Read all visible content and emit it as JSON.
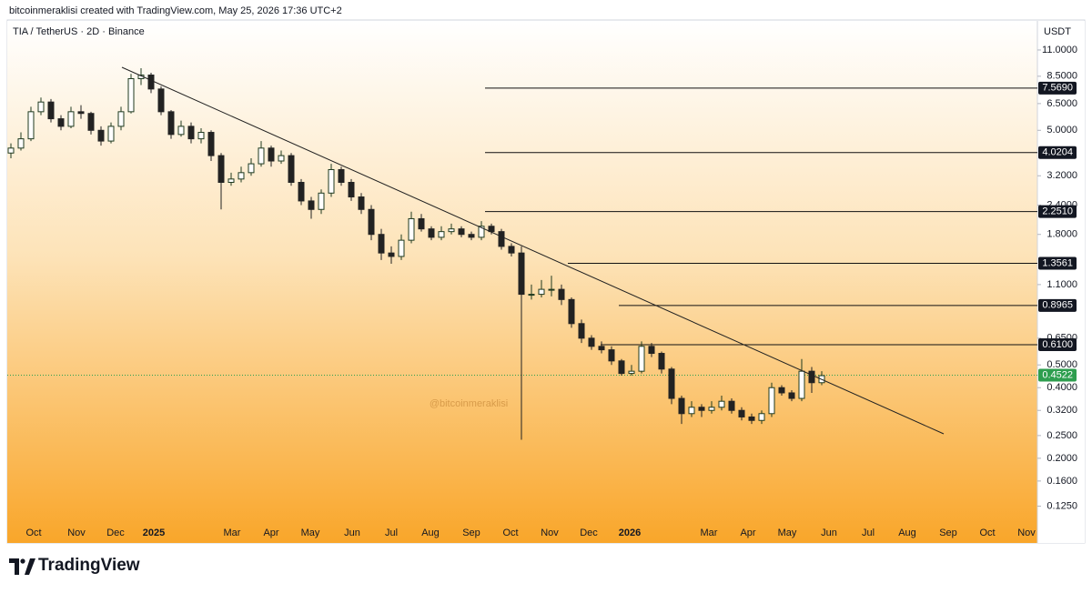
{
  "header": "bitcoinmeraklisi created with TradingView.com, May 25, 2026 17:36 UTC+2",
  "footer_brand": "TradingView",
  "chart_data": {
    "type": "candlestick",
    "symbol": "TIA / TetherUS · 2D · Binance",
    "currency": "USDT",
    "watermark": "@bitcoinmeraklisi",
    "log_scale": true,
    "up_color": "#1f3a1f",
    "down_color": "#222222",
    "ylim": [
      0.106,
      14.5
    ],
    "yticks": [
      {
        "value": 11,
        "label": "11.0000"
      },
      {
        "value": 8.5,
        "label": "8.5000"
      },
      {
        "value": 6.5,
        "label": "6.5000"
      },
      {
        "value": 5,
        "label": "5.0000"
      },
      {
        "value": 3.2,
        "label": "3.2000"
      },
      {
        "value": 2.4,
        "label": "2.4000"
      },
      {
        "value": 1.8,
        "label": "1.8000"
      },
      {
        "value": 1.1,
        "label": "1.1000"
      },
      {
        "value": 0.65,
        "label": "0.6500"
      },
      {
        "value": 0.5,
        "label": "0.5000"
      },
      {
        "value": 0.4,
        "label": "0.4000"
      },
      {
        "value": 0.32,
        "label": "0.3200"
      },
      {
        "value": 0.25,
        "label": "0.2500"
      },
      {
        "value": 0.2,
        "label": "0.2000"
      },
      {
        "value": 0.16,
        "label": "0.1600"
      },
      {
        "value": 0.125,
        "label": "0.1250"
      }
    ],
    "time_labels": [
      "Oct",
      "Nov",
      "Dec",
      "2025",
      "Mar",
      "Apr",
      "May",
      "Jun",
      "Jul",
      "Aug",
      "Sep",
      "Oct",
      "Nov",
      "Dec",
      "2026",
      "Mar",
      "Apr",
      "May",
      "Jun",
      "Jul",
      "Aug",
      "Sep",
      "Oct",
      "Nov"
    ],
    "levels": [
      {
        "value": 7.569,
        "label": "7.5690"
      },
      {
        "value": 4.0204,
        "label": "4.0204"
      },
      {
        "value": 2.251,
        "label": "2.2510"
      },
      {
        "value": 1.3561,
        "label": "1.3561"
      },
      {
        "value": 0.8965,
        "label": "0.8965"
      },
      {
        "value": 0.61,
        "label": "0.6100"
      }
    ],
    "last_price": {
      "value": 0.4522,
      "label": "0.4522",
      "color": "#2e9e4f"
    },
    "open": [
      4.0,
      4.2,
      4.6,
      6.0,
      6.6,
      5.6,
      5.2,
      6.0,
      5.9,
      5.0,
      4.5,
      5.2,
      6.0,
      8.3,
      8.6,
      7.5,
      6.0,
      4.8,
      5.2,
      4.6,
      4.9,
      3.9,
      3.0,
      3.1,
      3.3,
      3.6,
      4.2,
      3.7,
      3.9,
      3.0,
      2.5,
      2.3,
      2.7,
      3.4,
      3.0,
      2.6,
      2.3,
      1.8,
      1.5,
      1.45,
      1.7,
      2.1,
      1.9,
      1.75,
      1.85,
      1.9,
      1.8,
      1.75,
      1.95,
      1.85,
      1.6,
      1.5,
      1.0,
      1.0,
      1.05,
      1.05,
      0.95,
      0.75,
      0.65,
      0.6,
      0.58,
      0.52,
      0.46,
      0.47,
      0.6,
      0.56,
      0.48,
      0.36,
      0.31,
      0.33,
      0.32,
      0.33,
      0.35,
      0.32,
      0.3,
      0.29,
      0.31,
      0.4,
      0.38,
      0.36,
      0.47,
      0.42
    ],
    "high": [
      4.4,
      4.9,
      6.3,
      6.9,
      6.8,
      5.8,
      6.3,
      6.4,
      6.0,
      5.2,
      5.4,
      6.3,
      8.7,
      9.2,
      8.8,
      7.7,
      6.1,
      5.5,
      5.4,
      5.1,
      5.0,
      4.0,
      3.3,
      3.5,
      3.8,
      4.5,
      4.3,
      4.1,
      4.0,
      3.1,
      2.6,
      2.8,
      3.6,
      3.5,
      3.1,
      2.7,
      2.4,
      1.9,
      1.6,
      1.8,
      2.25,
      2.2,
      1.95,
      1.95,
      2.0,
      1.95,
      1.85,
      2.05,
      2.0,
      1.9,
      1.65,
      1.6,
      1.1,
      1.15,
      1.2,
      1.1,
      0.97,
      0.78,
      0.67,
      0.63,
      0.6,
      0.53,
      0.5,
      0.63,
      0.62,
      0.57,
      0.49,
      0.37,
      0.35,
      0.34,
      0.35,
      0.37,
      0.36,
      0.33,
      0.31,
      0.32,
      0.42,
      0.41,
      0.39,
      0.53,
      0.49,
      0.47
    ],
    "low": [
      3.8,
      4.1,
      4.5,
      5.8,
      5.4,
      5.0,
      5.1,
      5.6,
      4.8,
      4.3,
      4.4,
      5.0,
      5.9,
      7.8,
      7.2,
      5.8,
      4.6,
      4.7,
      4.4,
      4.4,
      3.7,
      2.3,
      2.9,
      3.0,
      3.2,
      3.5,
      3.5,
      3.6,
      2.9,
      2.4,
      2.1,
      2.2,
      2.6,
      2.9,
      2.5,
      2.2,
      1.7,
      1.4,
      1.35,
      1.4,
      1.65,
      1.85,
      1.7,
      1.7,
      1.8,
      1.75,
      1.7,
      1.7,
      1.8,
      1.55,
      1.45,
      0.24,
      0.95,
      0.97,
      0.98,
      0.9,
      0.72,
      0.62,
      0.58,
      0.56,
      0.5,
      0.45,
      0.45,
      0.46,
      0.54,
      0.46,
      0.34,
      0.28,
      0.3,
      0.3,
      0.31,
      0.32,
      0.31,
      0.29,
      0.28,
      0.28,
      0.3,
      0.37,
      0.35,
      0.35,
      0.38,
      0.41
    ],
    "close": [
      4.2,
      4.6,
      6.0,
      6.6,
      5.6,
      5.2,
      6.0,
      5.9,
      5.0,
      4.5,
      5.2,
      6.0,
      8.3,
      8.6,
      7.5,
      6.0,
      4.8,
      5.2,
      4.6,
      4.9,
      3.9,
      3.0,
      3.1,
      3.3,
      3.6,
      4.2,
      3.7,
      3.9,
      3.0,
      2.5,
      2.3,
      2.7,
      3.4,
      3.0,
      2.6,
      2.3,
      1.8,
      1.5,
      1.45,
      1.7,
      2.1,
      1.9,
      1.75,
      1.85,
      1.9,
      1.8,
      1.75,
      1.95,
      1.85,
      1.6,
      1.5,
      1.0,
      1.0,
      1.05,
      1.05,
      0.95,
      0.75,
      0.65,
      0.6,
      0.58,
      0.52,
      0.46,
      0.47,
      0.6,
      0.56,
      0.48,
      0.36,
      0.31,
      0.33,
      0.32,
      0.33,
      0.35,
      0.32,
      0.3,
      0.29,
      0.31,
      0.4,
      0.38,
      0.36,
      0.47,
      0.42,
      0.45
    ]
  }
}
